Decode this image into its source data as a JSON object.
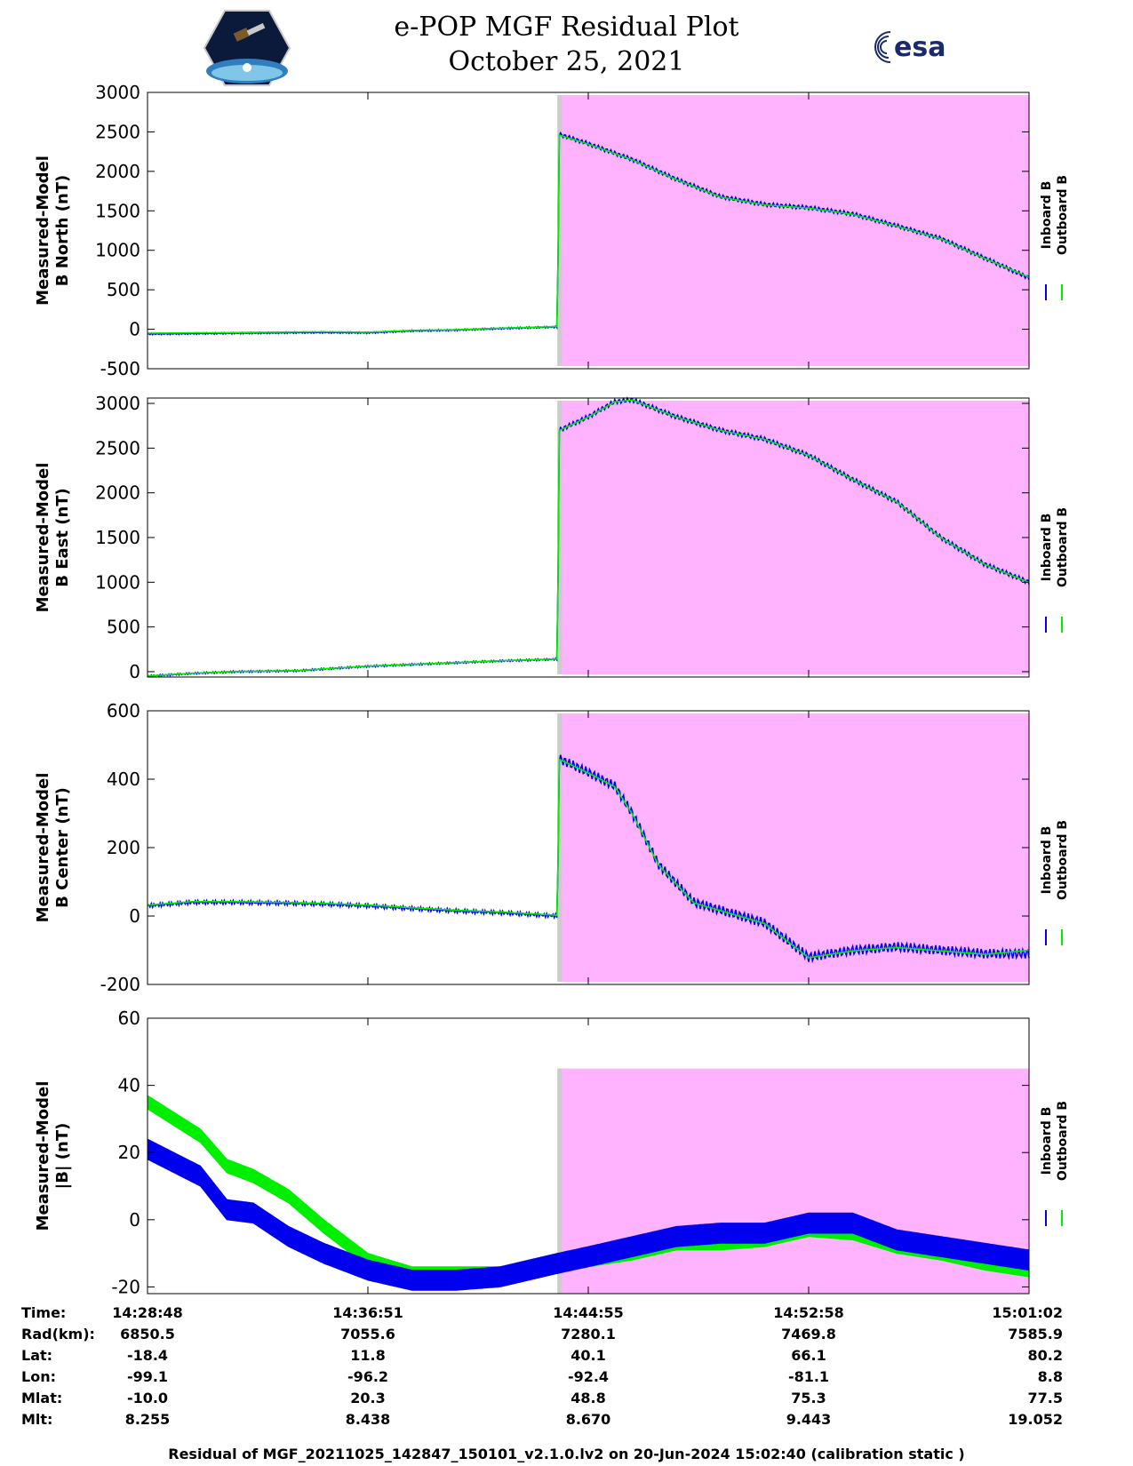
{
  "header": {
    "title_line1": "e-POP MGF Residual Plot",
    "title_line2": "October 25, 2021",
    "logo_left_icon": "cassiope-satellite-logo-icon",
    "logo_right_text": "esa"
  },
  "colors": {
    "inboard": "#0000ee",
    "outboard": "#00ee00",
    "shade": "#ffb3ff",
    "shade_edge": "#cccccc"
  },
  "legend": {
    "inboard": "Inboard B",
    "outboard": "Outboard B"
  },
  "chart_data": [
    {
      "type": "line",
      "ylabel_line1": "Measured-Model",
      "ylabel_line2": "B North (nT)",
      "ylim": [
        -500,
        3000
      ],
      "yticks": [
        "3000",
        "2500",
        "2000",
        "1500",
        "1000",
        "500",
        "0",
        "-500"
      ],
      "xlim": [
        0,
        1
      ],
      "shade_range": [
        0.465,
        1.0
      ],
      "series": [
        {
          "name": "Inboard B",
          "x": [
            0,
            0.1,
            0.2,
            0.25,
            0.3,
            0.35,
            0.4,
            0.465,
            0.467,
            0.5,
            0.55,
            0.6,
            0.65,
            0.7,
            0.75,
            0.8,
            0.85,
            0.9,
            0.95,
            1.0
          ],
          "values": [
            -60,
            -50,
            -40,
            -45,
            -20,
            -10,
            10,
            30,
            2470,
            2350,
            2150,
            1900,
            1680,
            1580,
            1540,
            1460,
            1310,
            1150,
            900,
            650
          ],
          "wiggle": 25
        },
        {
          "name": "Outboard B",
          "x": [
            0,
            0.1,
            0.2,
            0.25,
            0.3,
            0.35,
            0.4,
            0.465,
            0.467,
            0.5,
            0.55,
            0.6,
            0.65,
            0.7,
            0.75,
            0.8,
            0.85,
            0.9,
            0.95,
            1.0
          ],
          "values": [
            -50,
            -42,
            -32,
            -38,
            -14,
            -6,
            14,
            34,
            2460,
            2345,
            2145,
            1895,
            1675,
            1575,
            1535,
            1455,
            1305,
            1145,
            895,
            660
          ],
          "wiggle": 0
        }
      ]
    },
    {
      "type": "line",
      "ylabel_line1": "Measured-Model",
      "ylabel_line2": "B East (nT)",
      "ylim": [
        -60,
        3060
      ],
      "yticks": [
        "3000",
        "2500",
        "2000",
        "1500",
        "1000",
        "500",
        "0"
      ],
      "xlim": [
        0,
        1
      ],
      "shade_range": [
        0.465,
        1.0
      ],
      "series": [
        {
          "name": "Inboard B",
          "x": [
            0,
            0.05,
            0.1,
            0.17,
            0.2,
            0.25,
            0.3,
            0.35,
            0.4,
            0.465,
            0.467,
            0.5,
            0.53,
            0.55,
            0.6,
            0.65,
            0.7,
            0.75,
            0.8,
            0.85,
            0.9,
            0.95,
            1.0
          ],
          "values": [
            -50,
            -20,
            0,
            10,
            30,
            60,
            80,
            100,
            120,
            140,
            2700,
            2850,
            3020,
            3040,
            2850,
            2700,
            2600,
            2420,
            2150,
            1900,
            1500,
            1200,
            1000
          ],
          "wiggle": 25
        },
        {
          "name": "Outboard B",
          "x": [
            0,
            0.05,
            0.1,
            0.17,
            0.2,
            0.25,
            0.3,
            0.35,
            0.4,
            0.465,
            0.467,
            0.5,
            0.53,
            0.55,
            0.6,
            0.65,
            0.7,
            0.75,
            0.8,
            0.85,
            0.9,
            0.95,
            1.0
          ],
          "values": [
            -48,
            -18,
            2,
            12,
            32,
            62,
            82,
            102,
            122,
            142,
            2698,
            2848,
            3018,
            3038,
            2848,
            2698,
            2598,
            2418,
            2148,
            1898,
            1498,
            1198,
            998
          ],
          "wiggle": 0
        }
      ]
    },
    {
      "type": "line",
      "ylabel_line1": "Measured-Model",
      "ylabel_line2": "B Center (nT)",
      "ylim": [
        -200,
        600
      ],
      "yticks": [
        "600",
        "400",
        "200",
        "0",
        "-200"
      ],
      "xlim": [
        0,
        1
      ],
      "shade_range": [
        0.465,
        1.0
      ],
      "series": [
        {
          "name": "Inboard B",
          "x": [
            0,
            0.05,
            0.1,
            0.15,
            0.2,
            0.25,
            0.3,
            0.35,
            0.4,
            0.465,
            0.467,
            0.5,
            0.53,
            0.55,
            0.58,
            0.62,
            0.66,
            0.7,
            0.75,
            0.8,
            0.85,
            0.9,
            0.95,
            1.0
          ],
          "values": [
            30,
            40,
            40,
            38,
            35,
            30,
            22,
            15,
            10,
            0,
            460,
            420,
            380,
            300,
            150,
            40,
            10,
            -20,
            -120,
            -100,
            -90,
            -100,
            -110,
            -110
          ],
          "wiggle": 14
        },
        {
          "name": "Outboard B",
          "x": [
            0,
            0.05,
            0.1,
            0.15,
            0.2,
            0.25,
            0.3,
            0.35,
            0.4,
            0.465,
            0.467,
            0.5,
            0.53,
            0.55,
            0.58,
            0.62,
            0.66,
            0.7,
            0.75,
            0.8,
            0.85,
            0.9,
            0.95,
            1.0
          ],
          "values": [
            32,
            42,
            42,
            40,
            37,
            32,
            24,
            17,
            12,
            2,
            458,
            418,
            378,
            298,
            148,
            38,
            8,
            -22,
            -122,
            -102,
            -92,
            -102,
            -112,
            -100
          ],
          "wiggle": 0
        }
      ]
    },
    {
      "type": "line",
      "ylabel_line1": "Measured-Model",
      "ylabel_line2": "|B| (nT)",
      "ylim": [
        -22,
        60
      ],
      "yticks": [
        "60",
        "40",
        "20",
        "0",
        "-20"
      ],
      "xlim": [
        0,
        1
      ],
      "shade_range": [
        0.465,
        1.0
      ],
      "shade_top": 45,
      "series": [
        {
          "name": "Outboard B",
          "x": [
            0,
            0.03,
            0.06,
            0.09,
            0.12,
            0.16,
            0.2,
            0.25,
            0.3,
            0.35,
            0.4,
            0.465,
            0.5,
            0.55,
            0.6,
            0.65,
            0.7,
            0.75,
            0.8,
            0.85,
            0.9,
            0.95,
            1.0
          ],
          "values": [
            35,
            30,
            25,
            16,
            13,
            7,
            -2,
            -12,
            -16,
            -16,
            -16,
            -13,
            -12,
            -10,
            -7,
            -7,
            -6,
            -3,
            -4,
            -8,
            -10,
            -13,
            -15
          ],
          "band": 4
        },
        {
          "name": "Inboard B",
          "x": [
            0,
            0.03,
            0.06,
            0.09,
            0.12,
            0.16,
            0.2,
            0.25,
            0.3,
            0.35,
            0.4,
            0.465,
            0.5,
            0.55,
            0.6,
            0.65,
            0.7,
            0.75,
            0.8,
            0.85,
            0.9,
            0.95,
            1.0
          ],
          "values": [
            21,
            17,
            13,
            3,
            2,
            -5,
            -10,
            -15,
            -18,
            -18,
            -17,
            -13,
            -11,
            -8,
            -5,
            -4,
            -4,
            -1,
            -1,
            -6,
            -8,
            -10,
            -12
          ],
          "band": 6
        }
      ]
    }
  ],
  "table": {
    "rows": [
      {
        "label": "Time:",
        "values": [
          "14:28:48",
          "14:36:51",
          "14:44:55",
          "14:52:58",
          "15:01:02"
        ]
      },
      {
        "label": "Rad(km):",
        "values": [
          "6850.5",
          "7055.6",
          "7280.1",
          "7469.8",
          "7585.9"
        ]
      },
      {
        "label": "Lat:",
        "values": [
          "-18.4",
          "11.8",
          "40.1",
          "66.1",
          "80.2"
        ]
      },
      {
        "label": "Lon:",
        "values": [
          "-99.1",
          "-96.2",
          "-92.4",
          "-81.1",
          "8.8"
        ]
      },
      {
        "label": "Mlat:",
        "values": [
          "-10.0",
          "20.3",
          "48.8",
          "75.3",
          "77.5"
        ]
      },
      {
        "label": "Mlt:",
        "values": [
          "8.255",
          "8.438",
          "8.670",
          "9.443",
          "19.052"
        ]
      }
    ]
  },
  "footer": "Residual of MGF_20211025_142847_150101_v2.1.0.lv2 on 20-Jun-2024 15:02:40 (calibration static )"
}
